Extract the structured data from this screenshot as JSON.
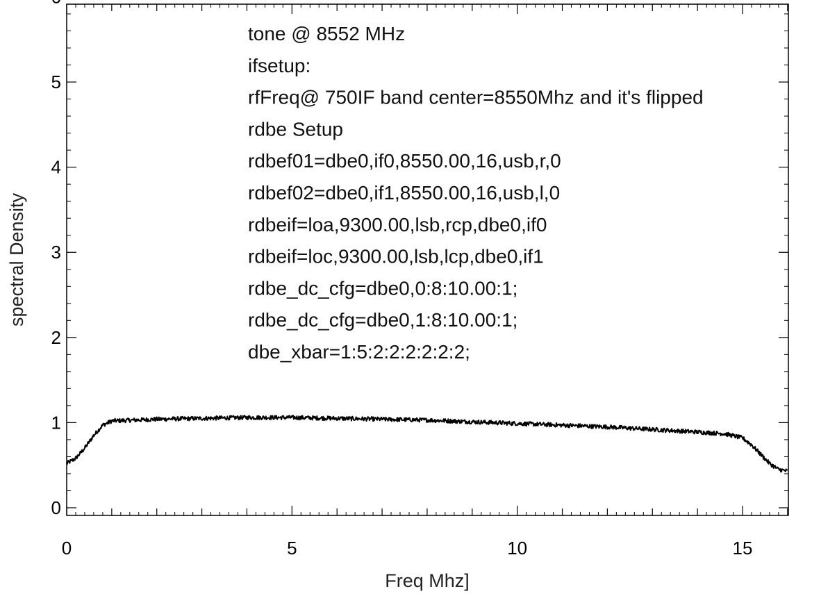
{
  "chart_data": {
    "type": "line",
    "title": "",
    "xlabel": "Freq Mhz]",
    "ylabel": "spectral Density",
    "xlim": [
      0,
      16
    ],
    "ylim": [
      0,
      6.2
    ],
    "xticks": [
      0,
      5,
      10,
      15
    ],
    "xtick_labels": [
      "0",
      "5",
      "10",
      "15"
    ],
    "yticks": [
      0,
      1,
      2,
      3,
      4,
      5,
      6
    ],
    "ytick_labels": [
      "0",
      "1",
      "2",
      "3",
      "4",
      "5",
      "6"
    ],
    "grid": false,
    "series": [
      {
        "color": "#000000",
        "x": [
          0,
          0.2,
          0.4,
          0.6,
          0.8,
          1.0,
          1.5,
          2.0,
          3.0,
          4.0,
          5.0,
          6.0,
          7.0,
          8.0,
          9.0,
          10.0,
          11.0,
          12.0,
          13.0,
          14.0,
          14.6,
          15.0,
          15.2,
          15.4,
          15.6,
          15.8,
          16.0
        ],
        "y": [
          0.52,
          0.58,
          0.7,
          0.85,
          0.97,
          1.02,
          1.03,
          1.04,
          1.05,
          1.06,
          1.06,
          1.05,
          1.04,
          1.03,
          1.01,
          0.99,
          0.97,
          0.95,
          0.92,
          0.89,
          0.87,
          0.82,
          0.74,
          0.63,
          0.52,
          0.45,
          0.43
        ]
      }
    ],
    "annotations": [
      "tone @ 8552 MHz",
      "ifsetup:",
      "rfFreq@ 750IF band center=8550Mhz and it's flipped",
      "rdbe Setup",
      "rdbef01=dbe0,if0,8550.00,16,usb,r,0",
      "rdbef02=dbe0,if1,8550.00,16,usb,l,0",
      "rdbeif=loa,9300.00,lsb,rcp,dbe0,if0",
      "rdbeif=loc,9300.00,lsb,lcp,dbe0,if1",
      "rdbe_dc_cfg=dbe0,0:8:10.00:1;",
      "rdbe_dc_cfg=dbe0,1:8:10.00:1;",
      "dbe_xbar=1:5:2:2:2:2:2:2;"
    ]
  }
}
